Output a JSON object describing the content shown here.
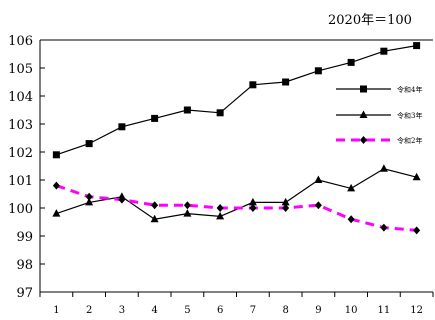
{
  "chart_data": {
    "type": "line",
    "note": "2020年＝100",
    "x": [
      1,
      2,
      3,
      4,
      5,
      6,
      7,
      8,
      9,
      10,
      11,
      12
    ],
    "ylim": [
      97,
      106
    ],
    "yticks": [
      97,
      98,
      99,
      100,
      101,
      102,
      103,
      104,
      105,
      106
    ],
    "grid": false,
    "legend_position": "right",
    "series": [
      {
        "name": "令和4年",
        "values": [
          101.9,
          102.3,
          102.9,
          103.2,
          103.5,
          103.4,
          104.4,
          104.5,
          104.9,
          105.2,
          105.6,
          105.8
        ],
        "color": "#000000",
        "marker": "square",
        "line": "solid"
      },
      {
        "name": "令和3年",
        "values": [
          99.8,
          100.2,
          100.4,
          99.6,
          99.8,
          99.7,
          100.2,
          100.2,
          101.0,
          100.7,
          101.4,
          101.1
        ],
        "color": "#000000",
        "marker": "triangle",
        "line": "solid"
      },
      {
        "name": "令和2年",
        "values": [
          100.8,
          100.4,
          100.3,
          100.1,
          100.1,
          100.0,
          100.0,
          100.0,
          100.1,
          99.6,
          99.3,
          99.2
        ],
        "color": "#ff00ff",
        "marker": "diamond",
        "line": "dashed"
      }
    ]
  }
}
